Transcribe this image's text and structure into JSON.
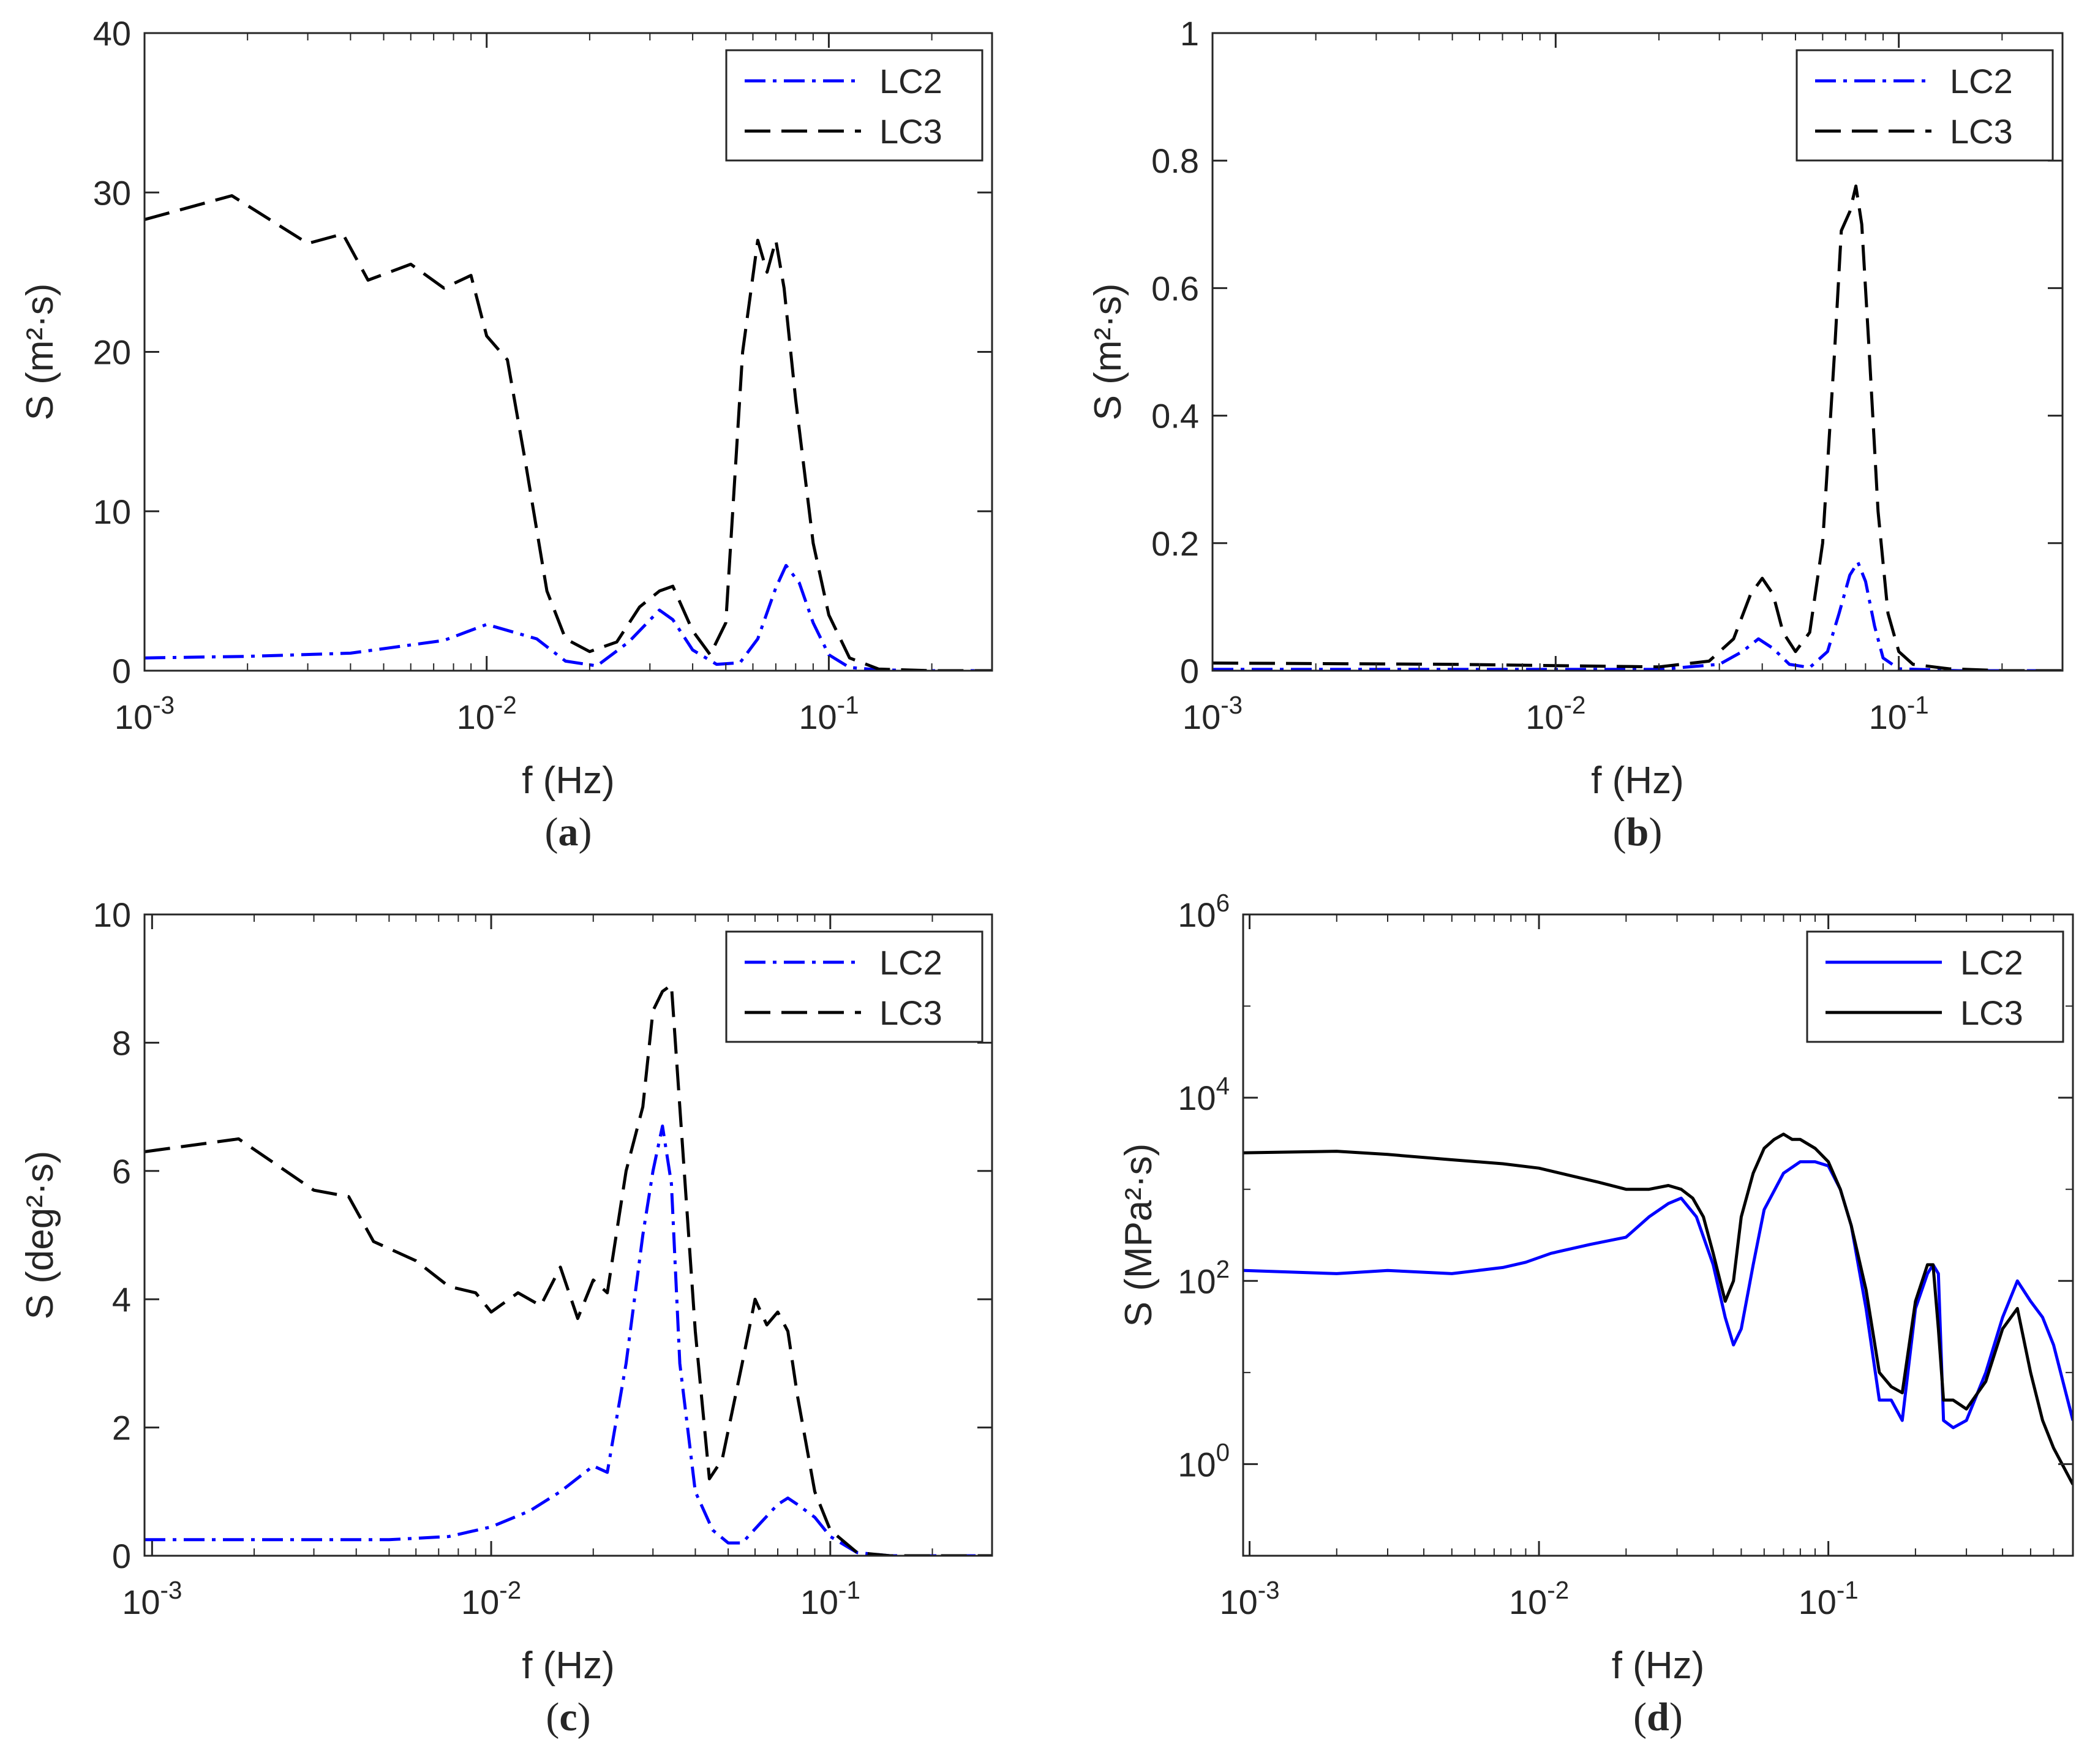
{
  "figure": {
    "background": "#ffffff"
  },
  "colors": {
    "lc2": "#0000ff",
    "lc3": "#000000",
    "axis": "#262626"
  },
  "chart_data": [
    {
      "id": "a",
      "type": "line",
      "caption": "a",
      "xscale": "log",
      "yscale": "linear",
      "xlabel": "f (Hz)",
      "ylabel": "S (m²·s)",
      "xlim": [
        0.001,
        0.3
      ],
      "ylim": [
        0,
        40
      ],
      "yticks": [
        0,
        10,
        20,
        30,
        40
      ],
      "ytick_labels": [
        "0",
        "10",
        "20",
        "30",
        "40"
      ],
      "xticks": [
        0.001,
        0.01,
        0.1
      ],
      "xtick_labels": [
        {
          "base": "10",
          "exp": "-3"
        },
        {
          "base": "10",
          "exp": "-2"
        },
        {
          "base": "10",
          "exp": "-1"
        }
      ],
      "legend": {
        "position": "top-right",
        "entries": [
          "LC2",
          "LC3"
        ]
      },
      "series": [
        {
          "name": "LC2",
          "style": "dashdot",
          "color": "#0000ff",
          "x": [
            0.001,
            0.002,
            0.004,
            0.0075,
            0.01,
            0.014,
            0.017,
            0.021,
            0.026,
            0.032,
            0.035,
            0.04,
            0.047,
            0.055,
            0.062,
            0.07,
            0.075,
            0.082,
            0.09,
            0.1,
            0.115,
            0.14,
            0.2,
            0.3
          ],
          "y": [
            0.8,
            0.9,
            1.1,
            1.9,
            2.9,
            2.0,
            0.6,
            0.3,
            1.8,
            3.8,
            3.2,
            1.3,
            0.4,
            0.5,
            2.0,
            5.2,
            6.6,
            5.5,
            3.0,
            1.0,
            0.2,
            0.05,
            0,
            0
          ]
        },
        {
          "name": "LC3",
          "style": "dashed",
          "color": "#000000",
          "x": [
            0.001,
            0.0018,
            0.003,
            0.0038,
            0.0045,
            0.006,
            0.0075,
            0.009,
            0.01,
            0.0115,
            0.013,
            0.015,
            0.017,
            0.02,
            0.024,
            0.028,
            0.032,
            0.035,
            0.04,
            0.045,
            0.05,
            0.056,
            0.062,
            0.066,
            0.07,
            0.074,
            0.08,
            0.09,
            0.1,
            0.115,
            0.14,
            0.2,
            0.3
          ],
          "y": [
            28.3,
            29.8,
            26.8,
            27.4,
            24.5,
            25.5,
            24.0,
            24.8,
            21.0,
            19.5,
            13.0,
            5.0,
            2.0,
            1.2,
            1.8,
            4.0,
            5.0,
            5.3,
            2.5,
            1.0,
            3.0,
            20.0,
            27.0,
            25.0,
            27.0,
            24.0,
            17.0,
            8.0,
            3.5,
            0.8,
            0.1,
            0,
            0
          ]
        }
      ]
    },
    {
      "id": "b",
      "type": "line",
      "caption": "b",
      "xscale": "log",
      "yscale": "linear",
      "xlabel": "f (Hz)",
      "ylabel": "S (m²·s)",
      "xlim": [
        0.001,
        0.3
      ],
      "ylim": [
        0,
        1
      ],
      "yticks": [
        0,
        0.2,
        0.4,
        0.6,
        0.8,
        1
      ],
      "ytick_labels": [
        "0",
        "0.2",
        "0.4",
        "0.6",
        "0.8",
        "1"
      ],
      "xticks": [
        0.001,
        0.01,
        0.1
      ],
      "xtick_labels": [
        {
          "base": "10",
          "exp": "-3"
        },
        {
          "base": "10",
          "exp": "-2"
        },
        {
          "base": "10",
          "exp": "-1"
        }
      ],
      "legend": {
        "position": "top-right",
        "entries": [
          "LC2",
          "LC3"
        ]
      },
      "series": [
        {
          "name": "LC2",
          "style": "dashdot",
          "color": "#0000ff",
          "x": [
            0.001,
            0.01,
            0.02,
            0.03,
            0.035,
            0.039,
            0.043,
            0.048,
            0.055,
            0.062,
            0.067,
            0.072,
            0.076,
            0.08,
            0.085,
            0.09,
            0.1,
            0.15,
            0.3
          ],
          "y": [
            0.002,
            0.002,
            0.002,
            0.01,
            0.03,
            0.05,
            0.035,
            0.01,
            0.005,
            0.03,
            0.09,
            0.15,
            0.17,
            0.14,
            0.07,
            0.02,
            0.003,
            0,
            0
          ]
        },
        {
          "name": "LC3",
          "style": "dashed",
          "color": "#000000",
          "x": [
            0.001,
            0.005,
            0.01,
            0.02,
            0.028,
            0.033,
            0.037,
            0.04,
            0.043,
            0.046,
            0.05,
            0.055,
            0.06,
            0.065,
            0.068,
            0.072,
            0.075,
            0.078,
            0.082,
            0.087,
            0.093,
            0.1,
            0.11,
            0.14,
            0.2,
            0.3
          ],
          "y": [
            0.012,
            0.01,
            0.008,
            0.006,
            0.015,
            0.05,
            0.12,
            0.145,
            0.12,
            0.06,
            0.03,
            0.06,
            0.2,
            0.5,
            0.69,
            0.72,
            0.76,
            0.7,
            0.5,
            0.25,
            0.09,
            0.03,
            0.01,
            0.003,
            0,
            0
          ]
        }
      ]
    },
    {
      "id": "c",
      "type": "line",
      "caption": "c",
      "xscale": "log",
      "yscale": "linear",
      "xlabel": "f (Hz)",
      "ylabel": "S (deg²·s)",
      "xlim": [
        0.00095,
        0.3
      ],
      "ylim": [
        0,
        10
      ],
      "yticks": [
        0,
        2,
        4,
        6,
        8,
        10
      ],
      "ytick_labels": [
        "0",
        "2",
        "4",
        "6",
        "8",
        "10"
      ],
      "xticks": [
        0.001,
        0.01,
        0.1
      ],
      "xtick_labels": [
        {
          "base": "10",
          "exp": "-3"
        },
        {
          "base": "10",
          "exp": "-2"
        },
        {
          "base": "10",
          "exp": "-1"
        }
      ],
      "legend": {
        "position": "top-right",
        "entries": [
          "LC2",
          "LC3"
        ]
      },
      "series": [
        {
          "name": "LC2",
          "style": "dashdot",
          "color": "#0000ff",
          "x": [
            0.00095,
            0.002,
            0.005,
            0.0075,
            0.01,
            0.013,
            0.016,
            0.02,
            0.022,
            0.025,
            0.028,
            0.03,
            0.032,
            0.034,
            0.036,
            0.04,
            0.045,
            0.05,
            0.055,
            0.062,
            0.07,
            0.075,
            0.08,
            0.09,
            0.1,
            0.12,
            0.15,
            0.3
          ],
          "y": [
            0.25,
            0.25,
            0.25,
            0.3,
            0.45,
            0.7,
            1.0,
            1.4,
            1.3,
            3.0,
            5.0,
            6.0,
            6.7,
            5.8,
            3.0,
            1.0,
            0.4,
            0.2,
            0.2,
            0.5,
            0.8,
            0.9,
            0.8,
            0.6,
            0.3,
            0.05,
            0,
            0
          ]
        },
        {
          "name": "LC3",
          "style": "dashed",
          "color": "#000000",
          "x": [
            0.00095,
            0.0018,
            0.003,
            0.0038,
            0.0045,
            0.006,
            0.0075,
            0.009,
            0.01,
            0.012,
            0.014,
            0.016,
            0.018,
            0.02,
            0.022,
            0.025,
            0.028,
            0.03,
            0.032,
            0.034,
            0.036,
            0.04,
            0.044,
            0.048,
            0.055,
            0.06,
            0.065,
            0.07,
            0.075,
            0.08,
            0.09,
            0.1,
            0.12,
            0.15,
            0.3
          ],
          "y": [
            6.3,
            6.5,
            5.7,
            5.6,
            4.9,
            4.6,
            4.2,
            4.1,
            3.8,
            4.1,
            3.9,
            4.5,
            3.7,
            4.3,
            4.1,
            6.0,
            7.0,
            8.5,
            8.8,
            8.9,
            7.0,
            3.5,
            1.2,
            1.5,
            3.0,
            4.0,
            3.6,
            3.8,
            3.5,
            2.5,
            1.0,
            0.4,
            0.05,
            0,
            0
          ]
        }
      ]
    },
    {
      "id": "d",
      "type": "line",
      "caption": "d",
      "xscale": "log",
      "yscale": "log",
      "xlabel": "f (Hz)",
      "ylabel": "S (MPa²·s)",
      "xlim": [
        0.00095,
        0.7
      ],
      "ylim": [
        0.1,
        1000000
      ],
      "yticks": [
        1,
        100,
        10000,
        1000000
      ],
      "ytick_labels": [
        {
          "base": "10",
          "exp": "0"
        },
        {
          "base": "10",
          "exp": "2"
        },
        {
          "base": "10",
          "exp": "4"
        },
        {
          "base": "10",
          "exp": "6"
        }
      ],
      "xticks": [
        0.001,
        0.01,
        0.1
      ],
      "xtick_labels": [
        {
          "base": "10",
          "exp": "-3"
        },
        {
          "base": "10",
          "exp": "-2"
        },
        {
          "base": "10",
          "exp": "-1"
        }
      ],
      "legend": {
        "position": "top-right",
        "entries": [
          "LC2",
          "LC3"
        ]
      },
      "series": [
        {
          "name": "LC2",
          "style": "solid",
          "color": "#0000ff",
          "x": [
            0.00095,
            0.002,
            0.003,
            0.005,
            0.0075,
            0.009,
            0.011,
            0.015,
            0.02,
            0.024,
            0.028,
            0.031,
            0.035,
            0.04,
            0.044,
            0.047,
            0.05,
            0.055,
            0.06,
            0.07,
            0.08,
            0.09,
            0.1,
            0.11,
            0.12,
            0.135,
            0.15,
            0.165,
            0.18,
            0.2,
            0.22,
            0.23,
            0.24,
            0.25,
            0.27,
            0.3,
            0.35,
            0.4,
            0.45,
            0.5,
            0.55,
            0.6,
            0.7
          ],
          "y": [
            130,
            120,
            130,
            120,
            140,
            160,
            200,
            250,
            300,
            500,
            700,
            800,
            500,
            150,
            40,
            20,
            30,
            150,
            600,
            1500,
            2000,
            2000,
            1800,
            1000,
            400,
            50,
            5,
            5,
            3,
            50,
            120,
            150,
            120,
            3,
            2.5,
            3,
            10,
            40,
            100,
            60,
            40,
            20,
            3
          ]
        },
        {
          "name": "LC3",
          "style": "solid",
          "color": "#000000",
          "x": [
            0.00095,
            0.002,
            0.003,
            0.005,
            0.0075,
            0.01,
            0.013,
            0.016,
            0.02,
            0.024,
            0.028,
            0.031,
            0.034,
            0.037,
            0.04,
            0.044,
            0.047,
            0.05,
            0.055,
            0.06,
            0.065,
            0.07,
            0.075,
            0.08,
            0.09,
            0.1,
            0.11,
            0.12,
            0.135,
            0.15,
            0.165,
            0.18,
            0.2,
            0.22,
            0.23,
            0.24,
            0.25,
            0.27,
            0.3,
            0.35,
            0.4,
            0.45,
            0.5,
            0.55,
            0.6,
            0.7
          ],
          "y": [
            2500,
            2600,
            2400,
            2100,
            1900,
            1700,
            1400,
            1200,
            1000,
            1000,
            1100,
            1000,
            800,
            500,
            200,
            60,
            100,
            500,
            1500,
            2800,
            3500,
            4000,
            3500,
            3500,
            2800,
            2000,
            1000,
            400,
            80,
            10,
            7,
            6,
            60,
            150,
            150,
            30,
            5,
            5,
            4,
            8,
            30,
            50,
            10,
            3,
            1.5,
            0.6
          ]
        }
      ]
    }
  ]
}
